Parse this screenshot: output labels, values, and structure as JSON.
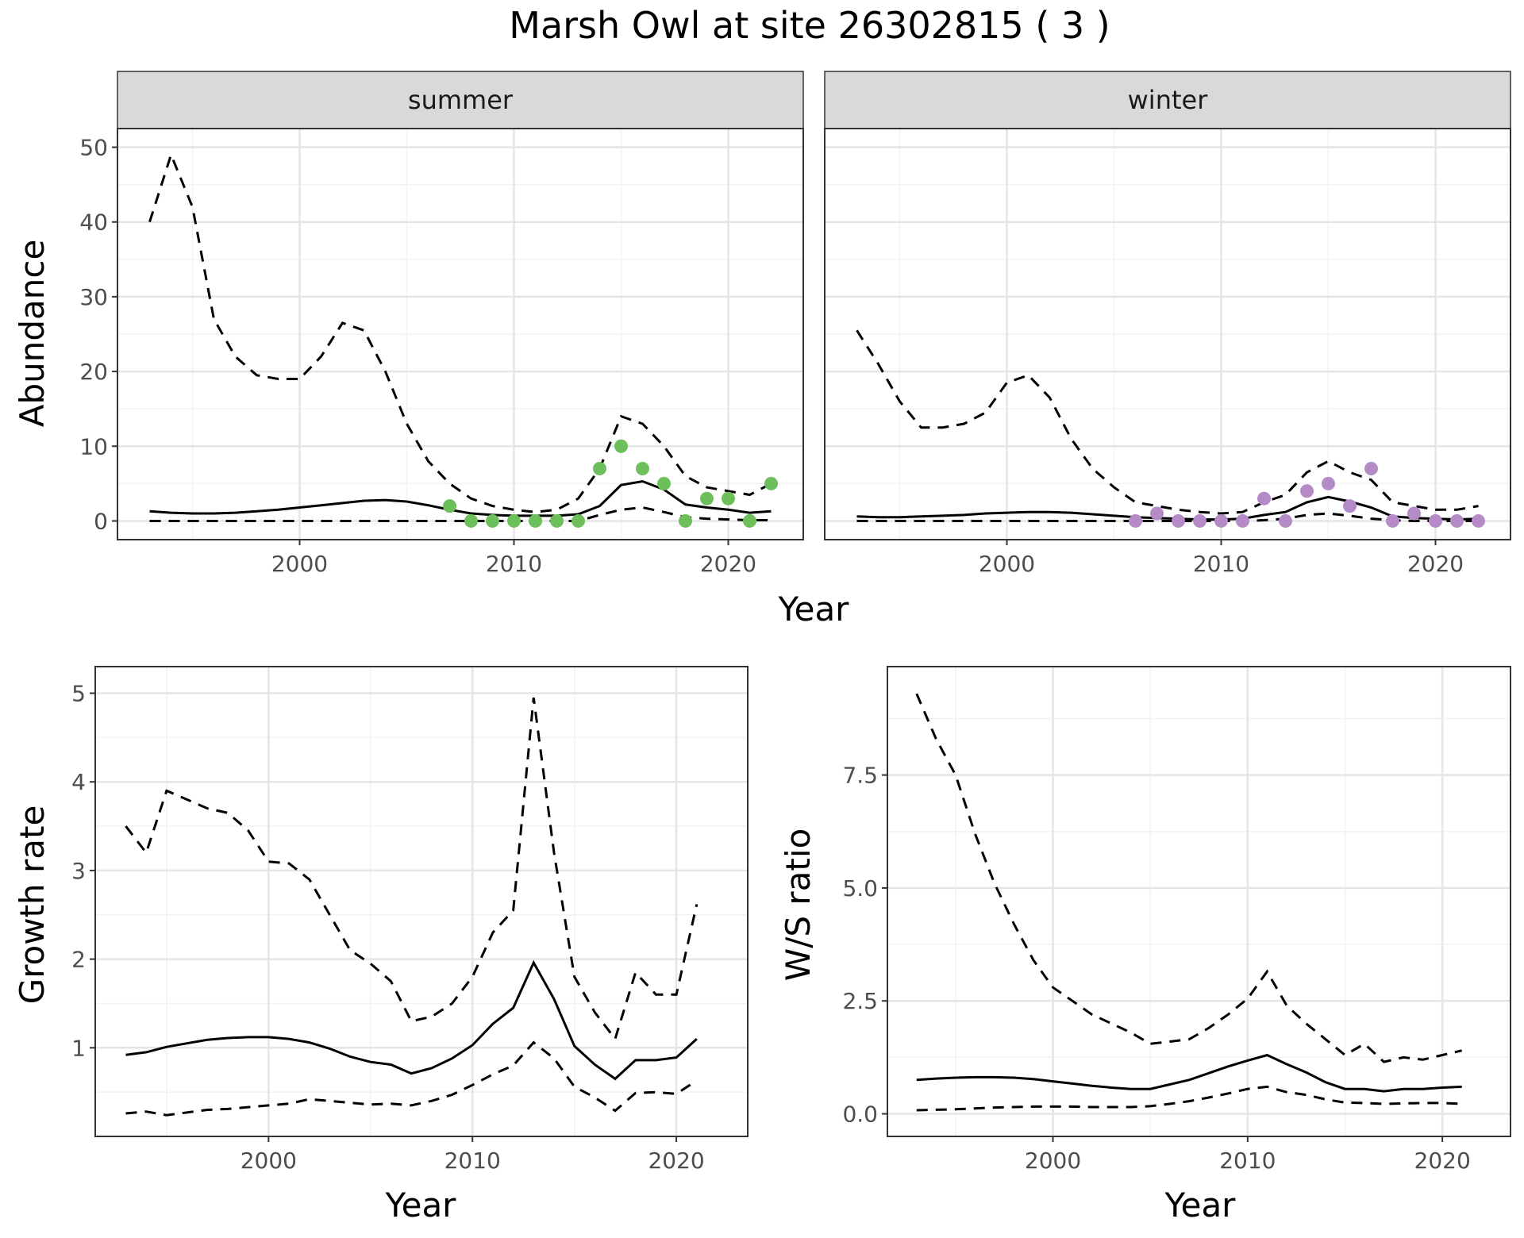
{
  "title": "Marsh Owl at site 26302815 ( 3 )",
  "colors": {
    "summer_points": "#6dbf5b",
    "winter_points": "#b48ac7",
    "line": "#000000",
    "grid_major": "#e5e5e5",
    "grid_minor": "#f2f2f2",
    "strip_fill": "#d9d9d9",
    "axis_text": "#4d4d4d"
  },
  "chart_data": [
    {
      "type": "line",
      "facet": "summer",
      "xlabel": "Year",
      "ylabel": "Abundance",
      "xlim": [
        1991.5,
        2023.5
      ],
      "ylim": [
        -2.5,
        52.5
      ],
      "xticks": [
        2000,
        2010,
        2020
      ],
      "yticks": [
        0,
        10,
        20,
        30,
        40,
        50
      ],
      "grid": true,
      "x": [
        1993,
        1994,
        1995,
        1996,
        1997,
        1998,
        1999,
        2000,
        2001,
        2002,
        2003,
        2004,
        2005,
        2006,
        2007,
        2008,
        2009,
        2010,
        2011,
        2012,
        2013,
        2014,
        2015,
        2016,
        2017,
        2018,
        2019,
        2020,
        2021,
        2022
      ],
      "series": [
        {
          "role": "estimate",
          "style": "solid",
          "values": [
            1.3,
            1.1,
            1.0,
            1.0,
            1.1,
            1.3,
            1.5,
            1.8,
            2.1,
            2.4,
            2.7,
            2.8,
            2.6,
            2.1,
            1.5,
            1.0,
            0.8,
            0.7,
            0.7,
            0.7,
            0.9,
            2.0,
            4.8,
            5.3,
            4.2,
            2.2,
            1.8,
            1.5,
            1.1,
            1.3
          ]
        },
        {
          "role": "upper",
          "style": "dashed",
          "values": [
            40,
            49,
            42,
            27,
            22,
            19.5,
            19,
            19,
            22,
            26.5,
            25.5,
            20,
            13,
            8,
            5,
            3,
            2,
            1.5,
            1.2,
            1.5,
            3,
            7,
            14,
            13,
            10,
            6,
            4.5,
            4,
            3.5,
            5
          ]
        },
        {
          "role": "lower",
          "style": "dashed",
          "values": [
            0,
            0,
            0,
            0,
            0,
            0,
            0,
            0,
            0,
            0,
            0,
            0,
            0,
            0,
            0,
            0,
            0,
            0,
            0,
            0,
            0,
            0.8,
            1.5,
            1.8,
            1.2,
            0.5,
            0.3,
            0.2,
            0.1,
            0.1
          ]
        }
      ],
      "points": {
        "x": [
          2007,
          2008,
          2009,
          2010,
          2011,
          2012,
          2013,
          2014,
          2015,
          2016,
          2017,
          2018,
          2019,
          2020,
          2021,
          2022
        ],
        "y": [
          2,
          0,
          0,
          0,
          0,
          0,
          0,
          7,
          10,
          7,
          5,
          0,
          3,
          3,
          0,
          5
        ]
      }
    },
    {
      "type": "line",
      "facet": "winter",
      "xlabel": "Year",
      "ylabel": "Abundance",
      "xlim": [
        1991.5,
        2023.5
      ],
      "ylim": [
        -2.5,
        52.5
      ],
      "xticks": [
        2000,
        2010,
        2020
      ],
      "yticks": [
        0,
        10,
        20,
        30,
        40,
        50
      ],
      "grid": true,
      "x": [
        1993,
        1994,
        1995,
        1996,
        1997,
        1998,
        1999,
        2000,
        2001,
        2002,
        2003,
        2004,
        2005,
        2006,
        2007,
        2008,
        2009,
        2010,
        2011,
        2012,
        2013,
        2014,
        2015,
        2016,
        2017,
        2018,
        2019,
        2020,
        2021,
        2022
      ],
      "series": [
        {
          "role": "estimate",
          "style": "solid",
          "values": [
            0.6,
            0.5,
            0.5,
            0.6,
            0.7,
            0.8,
            1.0,
            1.1,
            1.2,
            1.2,
            1.1,
            0.9,
            0.7,
            0.5,
            0.4,
            0.3,
            0.2,
            0.2,
            0.3,
            0.8,
            1.2,
            2.5,
            3.2,
            2.6,
            1.8,
            0.6,
            0.4,
            0.3,
            0.2,
            0.3
          ]
        },
        {
          "role": "upper",
          "style": "dashed",
          "values": [
            25.5,
            21,
            16,
            12.5,
            12.5,
            13,
            14.5,
            18.5,
            19.5,
            16.5,
            11,
            7,
            4.5,
            2.5,
            2,
            1.5,
            1.2,
            1.0,
            1.2,
            2.5,
            3.5,
            6.5,
            8,
            6.5,
            5.5,
            2.5,
            2,
            1.5,
            1.5,
            2
          ]
        },
        {
          "role": "lower",
          "style": "dashed",
          "values": [
            0,
            0,
            0,
            0,
            0,
            0,
            0,
            0,
            0,
            0,
            0,
            0,
            0,
            0,
            0,
            0,
            0,
            0,
            0,
            0.1,
            0.3,
            0.8,
            1.0,
            0.7,
            0.3,
            0.1,
            0,
            0,
            0,
            0
          ]
        }
      ],
      "points": {
        "x": [
          2006,
          2007,
          2008,
          2009,
          2010,
          2011,
          2012,
          2013,
          2014,
          2015,
          2016,
          2017,
          2018,
          2019,
          2020,
          2021,
          2022
        ],
        "y": [
          0,
          1,
          0,
          0,
          0,
          0,
          3,
          0,
          4,
          5,
          2,
          7,
          0,
          1,
          0,
          0,
          0
        ]
      }
    },
    {
      "type": "line",
      "xlabel": "Year",
      "ylabel": "Growth rate",
      "xlim": [
        1991.5,
        2023.5
      ],
      "ylim": [
        0.0,
        5.3
      ],
      "xticks": [
        2000,
        2010,
        2020
      ],
      "yticks": [
        1,
        2,
        3,
        4,
        5
      ],
      "grid": true,
      "x": [
        1993,
        1994,
        1995,
        1996,
        1997,
        1998,
        1999,
        2000,
        2001,
        2002,
        2003,
        2004,
        2005,
        2006,
        2007,
        2008,
        2009,
        2010,
        2011,
        2012,
        2013,
        2014,
        2015,
        2016,
        2017,
        2018,
        2019,
        2020,
        2021
      ],
      "series": [
        {
          "role": "estimate",
          "style": "solid",
          "values": [
            0.92,
            0.95,
            1.01,
            1.05,
            1.09,
            1.11,
            1.12,
            1.12,
            1.1,
            1.06,
            0.99,
            0.9,
            0.84,
            0.81,
            0.71,
            0.77,
            0.88,
            1.03,
            1.27,
            1.45,
            1.96,
            1.55,
            1.02,
            0.81,
            0.65,
            0.86,
            0.86,
            0.89,
            1.1
          ]
        },
        {
          "role": "upper",
          "style": "dashed",
          "values": [
            3.5,
            3.2,
            3.9,
            3.8,
            3.7,
            3.65,
            3.45,
            3.1,
            3.08,
            2.9,
            2.5,
            2.1,
            1.95,
            1.75,
            1.3,
            1.35,
            1.5,
            1.8,
            2.3,
            2.55,
            4.95,
            3.2,
            1.8,
            1.4,
            1.1,
            1.85,
            1.6,
            1.6,
            2.62
          ]
        },
        {
          "role": "lower",
          "style": "dashed",
          "values": [
            0.26,
            0.28,
            0.24,
            0.27,
            0.3,
            0.31,
            0.33,
            0.35,
            0.37,
            0.42,
            0.4,
            0.38,
            0.36,
            0.37,
            0.35,
            0.4,
            0.47,
            0.58,
            0.7,
            0.8,
            1.06,
            0.88,
            0.56,
            0.44,
            0.29,
            0.49,
            0.5,
            0.48,
            0.63
          ]
        }
      ]
    },
    {
      "type": "line",
      "xlabel": "Year",
      "ylabel": "W/S ratio",
      "xlim": [
        1991.5,
        2023.5
      ],
      "ylim": [
        -0.5,
        9.9
      ],
      "xticks": [
        2000,
        2010,
        2020
      ],
      "yticks": [
        0.0,
        2.5,
        5.0,
        7.5
      ],
      "ytick_labels": [
        "0.0",
        "2.5",
        "5.0",
        "7.5"
      ],
      "grid": true,
      "x": [
        1993,
        1994,
        1995,
        1996,
        1997,
        1998,
        1999,
        2000,
        2001,
        2002,
        2003,
        2004,
        2005,
        2006,
        2007,
        2008,
        2009,
        2010,
        2011,
        2012,
        2013,
        2014,
        2015,
        2016,
        2017,
        2018,
        2019,
        2020,
        2021
      ],
      "series": [
        {
          "role": "estimate",
          "style": "solid",
          "values": [
            0.75,
            0.78,
            0.8,
            0.81,
            0.81,
            0.8,
            0.77,
            0.72,
            0.67,
            0.62,
            0.58,
            0.55,
            0.55,
            0.65,
            0.75,
            0.9,
            1.05,
            1.18,
            1.3,
            1.1,
            0.92,
            0.7,
            0.55,
            0.55,
            0.5,
            0.55,
            0.55,
            0.58,
            0.6
          ]
        },
        {
          "role": "upper",
          "style": "dashed",
          "values": [
            9.3,
            8.3,
            7.5,
            6.2,
            5.1,
            4.2,
            3.4,
            2.8,
            2.5,
            2.2,
            2.0,
            1.8,
            1.55,
            1.6,
            1.65,
            1.9,
            2.2,
            2.55,
            3.15,
            2.4,
            2.0,
            1.65,
            1.3,
            1.55,
            1.15,
            1.25,
            1.2,
            1.3,
            1.4
          ]
        },
        {
          "role": "lower",
          "style": "dashed",
          "values": [
            0.08,
            0.09,
            0.1,
            0.12,
            0.14,
            0.15,
            0.16,
            0.16,
            0.16,
            0.15,
            0.15,
            0.15,
            0.17,
            0.22,
            0.28,
            0.36,
            0.45,
            0.55,
            0.6,
            0.48,
            0.42,
            0.32,
            0.25,
            0.24,
            0.22,
            0.23,
            0.24,
            0.24,
            0.22
          ]
        }
      ]
    }
  ],
  "strip_labels": [
    "summer",
    "winter"
  ]
}
